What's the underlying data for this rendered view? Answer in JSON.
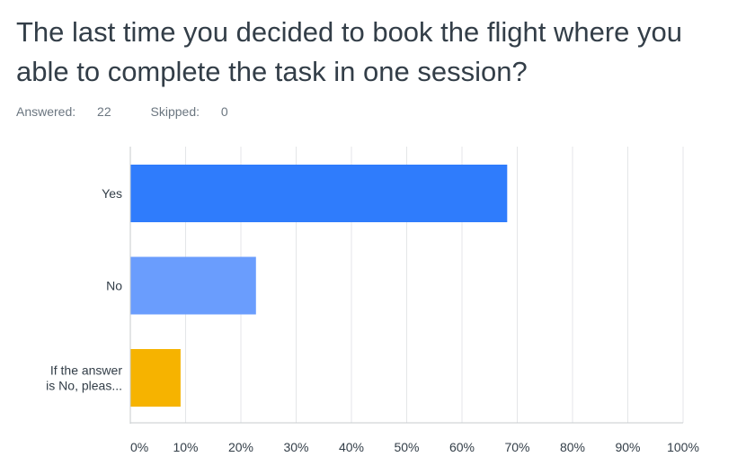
{
  "question": {
    "title": "The last time you decided to book the flight where you able to complete the task in one session?"
  },
  "stats": {
    "answered_label": "Answered:",
    "answered": "22",
    "skipped_label": "Skipped:",
    "skipped": "0"
  },
  "chart_data": {
    "type": "bar",
    "orientation": "horizontal",
    "categories": [
      "Yes",
      "No",
      "If the answer is No, pleas..."
    ],
    "category_lines": [
      [
        "Yes"
      ],
      [
        "No"
      ],
      [
        "If the answer",
        "is No, pleas..."
      ]
    ],
    "values": [
      68.18,
      22.73,
      9.09
    ],
    "unit": "%",
    "xlim": [
      0,
      100
    ],
    "ticks": [
      0,
      10,
      20,
      30,
      40,
      50,
      60,
      70,
      80,
      90,
      100
    ],
    "tick_labels": [
      "0%",
      "10%",
      "20%",
      "30%",
      "40%",
      "50%",
      "60%",
      "70%",
      "80%",
      "90%",
      "100%"
    ],
    "colors": [
      "#2f7cfc",
      "#6a9dfd",
      "#f6b300"
    ],
    "grid": true,
    "gridline_color": "#e4e6e8"
  }
}
